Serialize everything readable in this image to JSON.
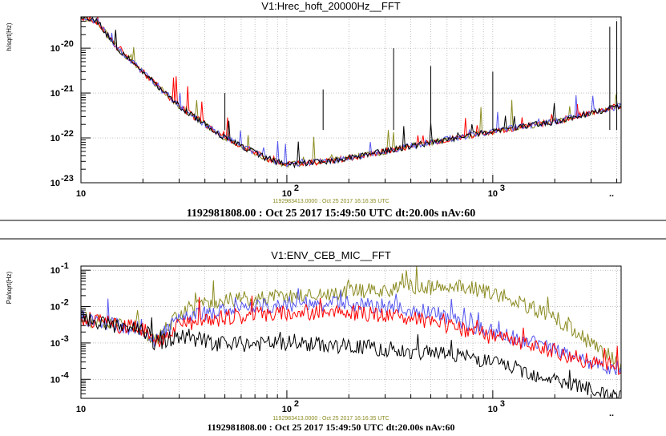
{
  "chart_data": [
    {
      "type": "line",
      "title": "V1:Hrec_hoft_20000Hz__FFT",
      "ylabel": "h/sqrt(Hz)",
      "xscale": "log",
      "yscale": "log",
      "xlim": [
        10,
        4200
      ],
      "ylim": [
        1e-23,
        5e-20
      ],
      "grid": true,
      "x_ticks": [
        10,
        100,
        1000
      ],
      "x_tick_labels": [
        "10",
        "10",
        "10"
      ],
      "x_tick_exps": [
        "",
        "2",
        "3"
      ],
      "y_ticks": [
        1e-23,
        1e-22,
        1e-21,
        1e-20
      ],
      "y_tick_labels": [
        "10",
        "10",
        "10",
        "10"
      ],
      "y_tick_exps": [
        "-23",
        "-22",
        "-21",
        "-20"
      ],
      "stamp": "1192983413.0000 : Oct 25 2017 16:16:35 UTC",
      "footer": "1192981808.00 : Oct 25 2017 15:49:50 UTC dt:20.00s nAv:60",
      "series": [
        {
          "color": "#8b8b22",
          "x": [
            10,
            12,
            15,
            20,
            30,
            50,
            80,
            100,
            150,
            200,
            300,
            500,
            1000,
            2000,
            4000
          ],
          "y": [
            5e-20,
            4e-20,
            1e-20,
            3e-21,
            5e-22,
            1e-22,
            3.5e-23,
            2.5e-23,
            3e-23,
            3.5e-23,
            5e-23,
            8e-23,
            1.4e-22,
            2.3e-22,
            5e-22
          ]
        },
        {
          "color": "#ff0000",
          "x": [
            10,
            12,
            15,
            20,
            30,
            50,
            80,
            100,
            150,
            200,
            300,
            500,
            1000,
            2000,
            4000
          ],
          "y": [
            5e-20,
            4e-20,
            1e-20,
            3e-21,
            5e-22,
            1e-22,
            3.5e-23,
            2.5e-23,
            3e-23,
            3.5e-23,
            5e-23,
            8e-23,
            1.4e-22,
            2.3e-22,
            5e-22
          ]
        },
        {
          "color": "#5555ee",
          "x": [
            10,
            12,
            15,
            20,
            30,
            50,
            80,
            100,
            150,
            200,
            300,
            500,
            1000,
            2000,
            4000
          ],
          "y": [
            5e-20,
            4e-20,
            1e-20,
            3e-21,
            5e-22,
            1e-22,
            3.5e-23,
            2.5e-23,
            3e-23,
            3.5e-23,
            5e-23,
            8e-23,
            1.4e-22,
            2.3e-22,
            5e-22
          ]
        },
        {
          "color": "#000000",
          "x": [
            10,
            12,
            15,
            20,
            30,
            50,
            80,
            100,
            150,
            200,
            300,
            500,
            1000,
            2000,
            4000
          ],
          "y": [
            5e-20,
            4e-20,
            1e-20,
            3e-21,
            5e-22,
            1e-22,
            3.5e-23,
            2.5e-23,
            3e-23,
            3.5e-23,
            5e-23,
            8e-23,
            1.4e-22,
            2.3e-22,
            5e-22
          ]
        }
      ],
      "lines": [
        {
          "x": 50,
          "y": 1e-21
        },
        {
          "x": 150,
          "y": 1.2e-21
        },
        {
          "x": 330,
          "y": 1e-20
        },
        {
          "x": 500,
          "y": 4e-21
        },
        {
          "x": 1000,
          "y": 3e-21
        },
        {
          "x": 3700,
          "y": 3e-20
        },
        {
          "x": 4000,
          "y": 4e-20
        }
      ]
    },
    {
      "type": "line",
      "title": "V1:ENV_CEB_MIC__FFT",
      "ylabel": "Pa/sqrt(Hz)",
      "xscale": "log",
      "yscale": "log",
      "xlim": [
        10,
        4200
      ],
      "ylim": [
        3e-05,
        0.13
      ],
      "grid": true,
      "x_ticks": [
        10,
        100,
        1000
      ],
      "x_tick_labels": [
        "10",
        "10",
        "10"
      ],
      "x_tick_exps": [
        "",
        "2",
        "3"
      ],
      "y_ticks": [
        0.0001,
        0.001,
        0.01,
        0.1
      ],
      "y_tick_labels": [
        "10",
        "10",
        "10",
        "10"
      ],
      "y_tick_exps": [
        "-4",
        "-3",
        "-2",
        "-1"
      ],
      "stamp": "1192983413.0000 : Oct 25 2017 16:16:35 UTC",
      "footer": "1192981808.00 : Oct 25 2017 15:49:50 UTC dt:20.00s nAv:60",
      "series": [
        {
          "color": "#8b8b22",
          "x": [
            10,
            15,
            20,
            23,
            30,
            50,
            100,
            200,
            300,
            500,
            800,
            1000,
            2000,
            3000,
            4000
          ],
          "y": [
            0.005,
            0.003,
            0.0025,
            0.001,
            0.007,
            0.015,
            0.02,
            0.025,
            0.03,
            0.035,
            0.03,
            0.025,
            0.005,
            0.001,
            0.0003
          ]
        },
        {
          "color": "#5555ee",
          "x": [
            10,
            15,
            20,
            23,
            30,
            50,
            100,
            200,
            300,
            500,
            800,
            1000,
            2000,
            3000,
            4000
          ],
          "y": [
            0.005,
            0.003,
            0.0025,
            0.001,
            0.005,
            0.008,
            0.012,
            0.012,
            0.01,
            0.007,
            0.003,
            0.002,
            0.0007,
            0.0003,
            0.0002
          ]
        },
        {
          "color": "#ff0000",
          "x": [
            10,
            15,
            20,
            23,
            30,
            50,
            100,
            200,
            300,
            500,
            800,
            1000,
            2000,
            3000,
            4000
          ],
          "y": [
            0.005,
            0.003,
            0.0025,
            0.001,
            0.003,
            0.005,
            0.007,
            0.007,
            0.006,
            0.004,
            0.002,
            0.0015,
            0.0006,
            0.0003,
            0.0002
          ]
        },
        {
          "color": "#000000",
          "x": [
            10,
            15,
            20,
            23,
            30,
            50,
            100,
            200,
            300,
            500,
            800,
            1000,
            2000,
            3000,
            4000
          ],
          "y": [
            0.005,
            0.003,
            0.0025,
            0.001,
            0.0015,
            0.0009,
            0.001,
            0.0008,
            0.0007,
            0.0005,
            0.0004,
            0.0003,
            0.0001,
            5e-05,
            3e-05
          ]
        }
      ],
      "lines": []
    }
  ]
}
